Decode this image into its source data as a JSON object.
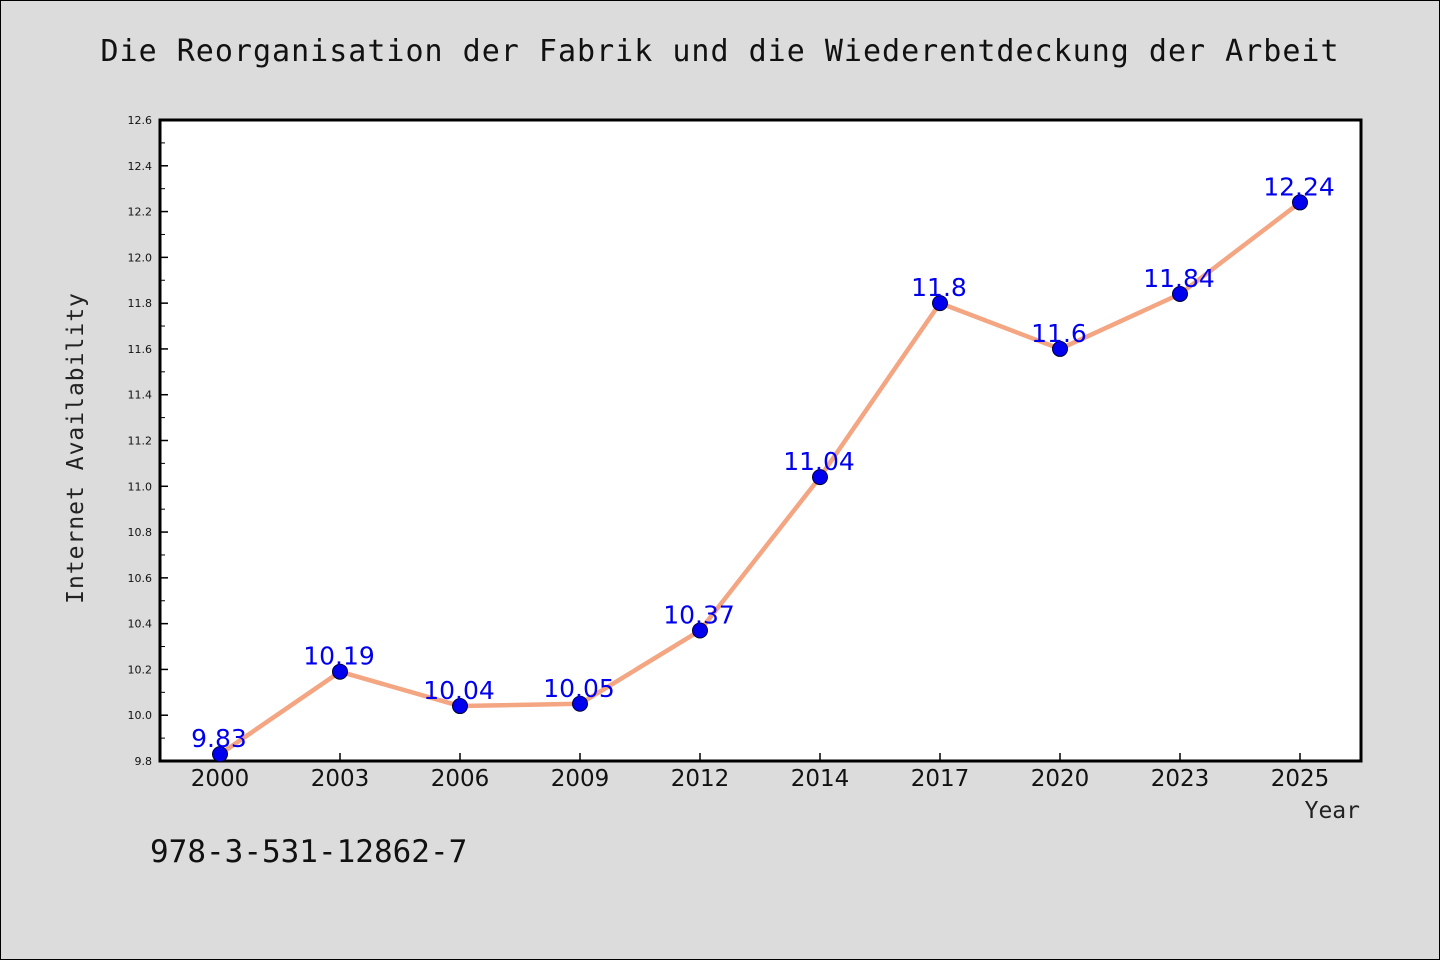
{
  "chart_data": {
    "type": "line",
    "title": "Die Reorganisation der Fabrik und die Wiederentdeckung der Arbeit",
    "xlabel": "Year",
    "ylabel": "Internet Availability",
    "categories": [
      "2000",
      "2003",
      "2006",
      "2009",
      "2012",
      "2014",
      "2017",
      "2020",
      "2023",
      "2025"
    ],
    "series": [
      {
        "values": [
          9.83,
          10.19,
          10.04,
          10.05,
          10.37,
          11.04,
          11.8,
          11.6,
          11.84,
          12.24
        ],
        "labels": [
          "9.83",
          "10.19",
          "10.04",
          "10.05",
          "10.37",
          "11.04",
          "11.8",
          "11.6",
          "11.84",
          "12.24"
        ],
        "line_color": "#f4a582",
        "marker_color": "#0000ee"
      }
    ],
    "ylim": [
      9.8,
      12.6
    ],
    "yticks": [
      "9.8",
      "10.0",
      "10.2",
      "10.4",
      "10.6",
      "10.8",
      "11.0",
      "11.2",
      "11.4",
      "11.6",
      "11.8",
      "12.0",
      "12.2",
      "12.4",
      "12.6"
    ],
    "grid": false,
    "legend": false
  },
  "footer": {
    "isbn": "978-3-531-12862-7"
  },
  "colors": {
    "background": "#dcdcdc",
    "plot_background": "#ffffff",
    "label_color": "#0000ee"
  }
}
